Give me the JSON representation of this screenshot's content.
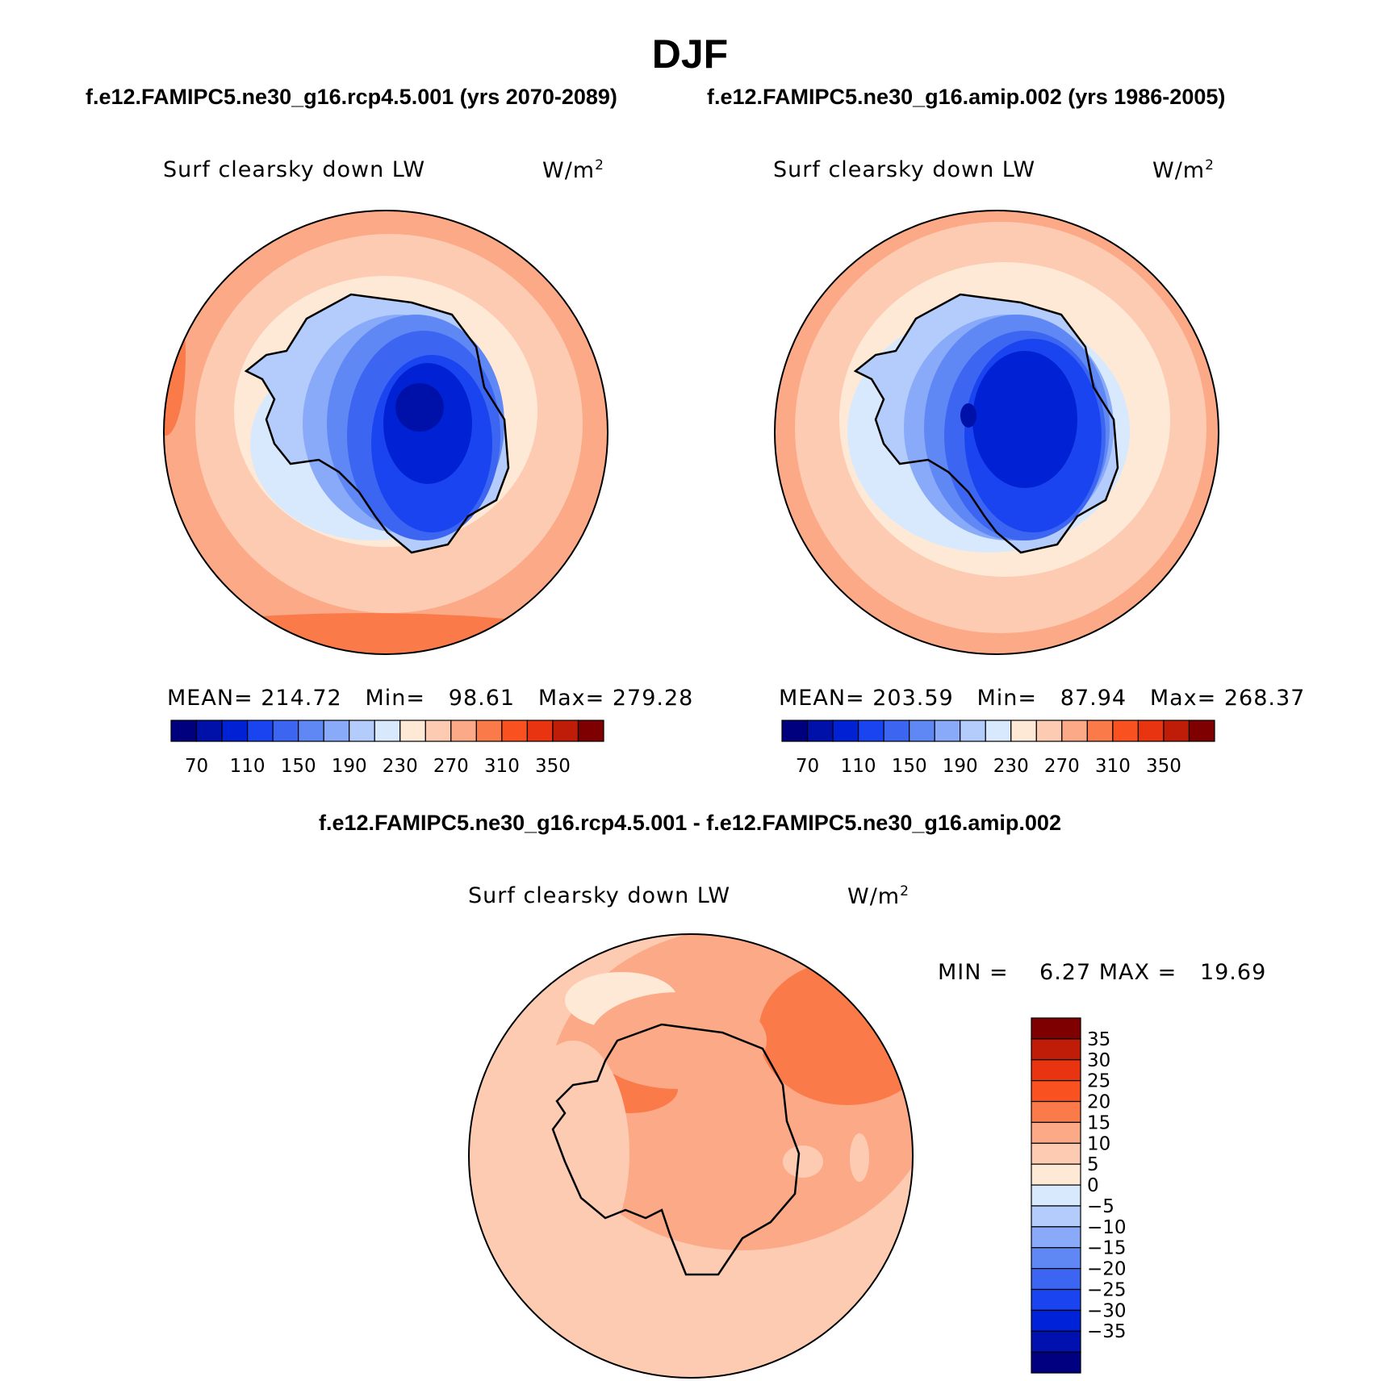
{
  "figure": {
    "title": "DJF",
    "case1": "f.e12.FAMIPC5.ne30_g16.rcp4.5.001 (yrs 2070-2089)",
    "case2": "f.e12.FAMIPC5.ne30_g16.amip.002 (yrs 1986-2005)",
    "diff_title": "f.e12.FAMIPC5.ne30_g16.rcp4.5.001 - f.e12.FAMIPC5.ne30_g16.amip.002"
  },
  "panels": [
    {
      "variable": "Surf clearsky down LW",
      "unit_base": "W/m",
      "unit_exp": "2",
      "mean_label": "MEAN=",
      "mean": "214.72",
      "min_label": "Min=",
      "min": "98.61",
      "max_label": "Max=",
      "max": "279.28"
    },
    {
      "variable": "Surf clearsky down LW",
      "unit_base": "W/m",
      "unit_exp": "2",
      "mean_label": "MEAN=",
      "mean": "203.59",
      "min_label": "Min=",
      "min": "87.94",
      "max_label": "Max=",
      "max": "268.37"
    },
    {
      "variable": "Surf clearsky down LW",
      "unit_base": "W/m",
      "unit_exp": "2",
      "min_label": "MIN =",
      "min": "6.27",
      "max_label": "MAX =",
      "max": "19.69"
    }
  ],
  "colorbar_abs": {
    "colors": [
      "#00007f",
      "#0011a9",
      "#0022d4",
      "#1a44f0",
      "#3c66f2",
      "#6088f5",
      "#88aaf8",
      "#b4ccfb",
      "#d8e9fd",
      "#fee9d7",
      "#fdcbb2",
      "#fba987",
      "#fb7a4a",
      "#fa5120",
      "#e83410",
      "#c01d08",
      "#7f0000"
    ],
    "tick_labels": [
      "70",
      "110",
      "150",
      "190",
      "230",
      "270",
      "310",
      "350"
    ]
  },
  "colorbar_diff": {
    "colors": [
      "#000080",
      "#0011b0",
      "#0022d8",
      "#1a44f0",
      "#3c66f2",
      "#6088f5",
      "#88aaf8",
      "#b4ccfb",
      "#d8e9fd",
      "#fee9d7",
      "#fdcbb2",
      "#fba987",
      "#fb7a4a",
      "#fa5120",
      "#e83410",
      "#c01d08",
      "#7f0000"
    ],
    "tick_labels": [
      "35",
      "30",
      "25",
      "20",
      "15",
      "10",
      "5",
      "0",
      "−5",
      "−10",
      "−15",
      "−20",
      "−25",
      "−30",
      "−35"
    ]
  },
  "chart_data": [
    {
      "type": "heatmap",
      "title": "Surf clearsky down LW",
      "unit": "W/m2",
      "projection": "polar stereographic (south pole)",
      "mean": 214.72,
      "min": 98.61,
      "max": 279.28,
      "levels": [
        70,
        90,
        110,
        130,
        150,
        170,
        190,
        210,
        230,
        250,
        270,
        290,
        310,
        330,
        350
      ]
    },
    {
      "type": "heatmap",
      "title": "Surf clearsky down LW",
      "unit": "W/m2",
      "projection": "polar stereographic (south pole)",
      "mean": 203.59,
      "min": 87.94,
      "max": 268.37,
      "levels": [
        70,
        90,
        110,
        130,
        150,
        170,
        190,
        210,
        230,
        250,
        270,
        290,
        310,
        330,
        350
      ]
    },
    {
      "type": "heatmap",
      "title": "Surf clearsky down LW",
      "unit": "W/m2",
      "projection": "polar stereographic (south pole)",
      "min": 6.27,
      "max": 19.69,
      "levels": [
        -35,
        -30,
        -25,
        -20,
        -15,
        -10,
        -5,
        0,
        5,
        10,
        15,
        20,
        25,
        30,
        35
      ]
    }
  ]
}
